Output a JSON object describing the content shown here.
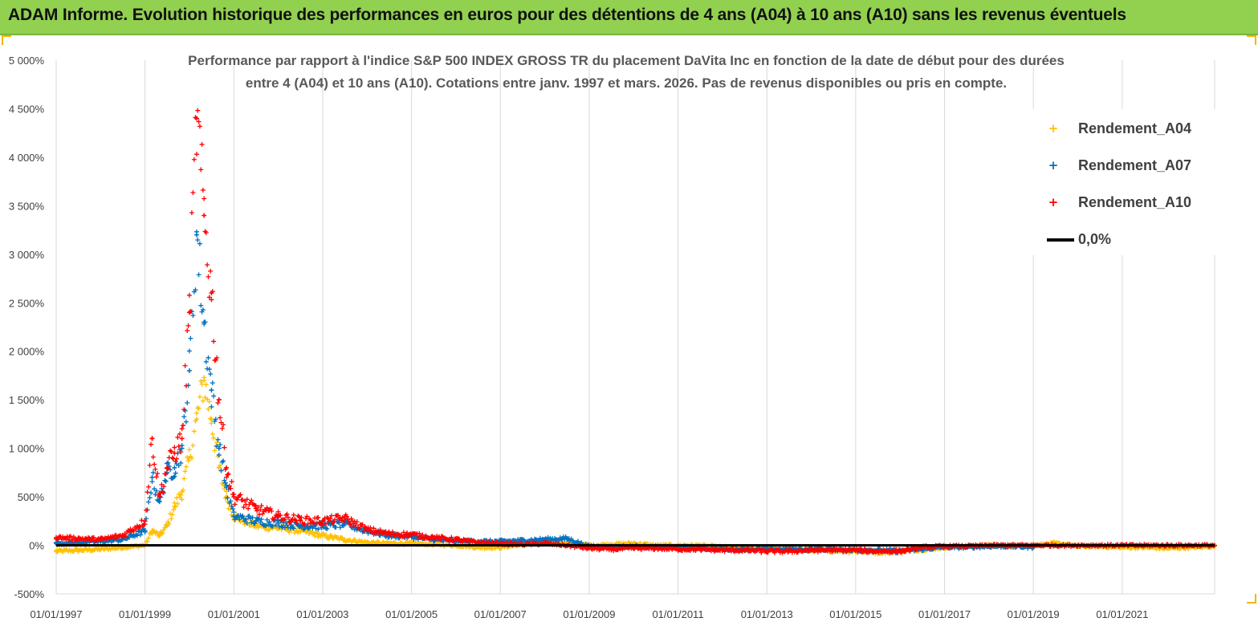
{
  "banner": {
    "title": "ADAM Informe. Evolution historique des performances en euros pour des détentions de 4 ans (A04) à 10 ans (A10) sans les revenus éventuels"
  },
  "chart": {
    "subtitle_line1": "Performance par rapport à l'indice S&P 500 INDEX GROSS TR  du placement DaVita Inc en fonction de la date de début pour des durées",
    "subtitle_line2": "entre 4 (A04) et 10 ans (A10). Cotations entre janv. 1997 et mars. 2026. Pas de revenus disponibles ou pris en compte."
  },
  "legend": {
    "items": [
      {
        "label": "Rendement_A04",
        "marker": "+",
        "color": "#ffc000"
      },
      {
        "label": "Rendement_A07",
        "marker": "+",
        "color": "#0070c0"
      },
      {
        "label": "Rendement_A10",
        "marker": "+",
        "color": "#ff0000"
      },
      {
        "label": "0,0%",
        "marker": "line",
        "color": "#000000"
      }
    ]
  },
  "chart_data": {
    "type": "scatter",
    "title": "Performance par rapport à l'indice S&P 500 INDEX GROSS TR  du placement DaVita Inc en fonction de la date de début pour des durées entre 4 (A04) et 10 ans (A10). Cotations entre janv. 1997 et mars. 2026. Pas de revenus disponibles ou pris en compte.",
    "xlabel": "",
    "ylabel": "",
    "y_unit": "%",
    "ylim": [
      -500,
      5000
    ],
    "xlim": [
      "1997-01-01",
      "2023-01-31"
    ],
    "y_ticks": [
      -500,
      0,
      500,
      1000,
      1500,
      2000,
      2500,
      3000,
      3500,
      4000,
      4500,
      5000
    ],
    "y_tick_labels": [
      "-500%",
      "0%",
      "500%",
      "1 000%",
      "1 500%",
      "2 000%",
      "2 500%",
      "3 000%",
      "3 500%",
      "4 000%",
      "4 500%",
      "5 000%"
    ],
    "x_ticks": [
      "1997-01-01",
      "1999-01-01",
      "2001-01-01",
      "2003-01-01",
      "2005-01-01",
      "2007-01-01",
      "2009-01-01",
      "2011-01-01",
      "2013-01-01",
      "2015-01-01",
      "2017-01-01",
      "2019-01-01",
      "2021-01-01"
    ],
    "x_tick_labels": [
      "01/01/1997",
      "01/01/1999",
      "01/01/2001",
      "01/01/2003",
      "01/01/2005",
      "01/01/2007",
      "01/01/2009",
      "01/01/2011",
      "01/01/2013",
      "01/01/2015",
      "01/01/2017",
      "01/01/2019",
      "01/01/2021"
    ],
    "grid": "vertical",
    "legend_position": "top-right",
    "series": [
      {
        "name": "Rendement_A04",
        "color": "#ffc000",
        "marker": "+",
        "x": [
          "1997-01-01",
          "1997-07-01",
          "1998-01-01",
          "1998-07-01",
          "1999-01-01",
          "1999-03-01",
          "1999-05-01",
          "1999-07-01",
          "1999-09-01",
          "1999-11-01",
          "2000-01-01",
          "2000-03-01",
          "2000-05-01",
          "2000-07-01",
          "2000-09-01",
          "2000-11-01",
          "2001-01-01",
          "2001-07-01",
          "2002-01-01",
          "2002-07-01",
          "2003-01-01",
          "2003-07-01",
          "2004-01-01",
          "2004-07-01",
          "2005-01-01",
          "2005-07-01",
          "2006-01-01",
          "2006-07-01",
          "2007-01-01",
          "2007-07-01",
          "2008-01-01",
          "2008-07-01",
          "2009-01-01",
          "2009-07-01",
          "2010-01-01",
          "2010-07-01",
          "2011-01-01",
          "2011-07-01",
          "2012-01-01",
          "2012-07-01",
          "2013-01-01",
          "2013-07-01",
          "2014-01-01",
          "2014-07-01",
          "2015-01-01",
          "2015-07-01",
          "2016-01-01",
          "2016-07-01",
          "2017-01-01",
          "2017-07-01",
          "2018-01-01",
          "2018-07-01",
          "2019-01-01",
          "2019-07-01",
          "2020-01-01",
          "2020-07-01",
          "2021-01-01",
          "2021-07-01",
          "2022-01-01",
          "2022-07-01",
          "2023-01-31"
        ],
        "y": [
          -60,
          -50,
          -40,
          -20,
          0,
          150,
          100,
          200,
          400,
          550,
          900,
          1300,
          1700,
          1300,
          800,
          500,
          300,
          200,
          180,
          150,
          100,
          60,
          30,
          20,
          20,
          10,
          0,
          -20,
          -20,
          10,
          40,
          20,
          0,
          10,
          20,
          0,
          0,
          0,
          -20,
          -30,
          -40,
          -40,
          -50,
          -50,
          -60,
          -70,
          -60,
          -40,
          -20,
          -10,
          0,
          -10,
          0,
          20,
          -10,
          -10,
          -20,
          -20,
          -30,
          -20,
          -10
        ]
      },
      {
        "name": "Rendement_A07",
        "color": "#0070c0",
        "marker": "+",
        "x": [
          "1997-01-01",
          "1997-07-01",
          "1998-01-01",
          "1998-07-01",
          "1999-01-01",
          "1999-03-01",
          "1999-05-01",
          "1999-07-01",
          "1999-09-01",
          "1999-11-01",
          "2000-01-01",
          "2000-03-01",
          "2000-05-01",
          "2000-07-01",
          "2000-09-01",
          "2000-11-01",
          "2001-01-01",
          "2001-07-01",
          "2002-01-01",
          "2002-07-01",
          "2003-01-01",
          "2003-07-01",
          "2004-01-01",
          "2004-07-01",
          "2005-01-01",
          "2005-07-01",
          "2006-01-01",
          "2006-07-01",
          "2007-01-01",
          "2007-07-01",
          "2008-01-01",
          "2008-07-01",
          "2009-01-01",
          "2009-07-01",
          "2010-01-01",
          "2010-07-01",
          "2011-01-01",
          "2011-07-01",
          "2012-01-01",
          "2012-07-01",
          "2013-01-01",
          "2013-07-01",
          "2014-01-01",
          "2014-07-01",
          "2015-01-01",
          "2015-07-01",
          "2016-01-01",
          "2016-07-01",
          "2017-01-01",
          "2017-07-01",
          "2018-01-01",
          "2018-07-01",
          "2019-01-01"
        ],
        "y": [
          20,
          30,
          40,
          60,
          150,
          700,
          450,
          750,
          800,
          1000,
          1800,
          3200,
          2300,
          1600,
          1000,
          600,
          300,
          250,
          230,
          200,
          200,
          220,
          150,
          100,
          90,
          60,
          40,
          40,
          40,
          50,
          60,
          70,
          -10,
          -20,
          -10,
          -20,
          -20,
          -30,
          -40,
          -40,
          -40,
          -40,
          -40,
          -40,
          -50,
          -50,
          -60,
          -40,
          -20,
          -20,
          -10,
          -10,
          -20
        ]
      },
      {
        "name": "Rendement_A10",
        "color": "#ff0000",
        "marker": "+",
        "x": [
          "1997-01-01",
          "1997-07-01",
          "1998-01-01",
          "1998-07-01",
          "1999-01-01",
          "1999-03-01",
          "1999-05-01",
          "1999-07-01",
          "1999-09-01",
          "1999-11-01",
          "2000-01-01",
          "2000-03-01",
          "2000-05-01",
          "2000-07-01",
          "2000-09-01",
          "2000-11-01",
          "2001-01-01",
          "2001-07-01",
          "2002-01-01",
          "2002-07-01",
          "2003-01-01",
          "2003-07-01",
          "2004-01-01",
          "2004-07-01",
          "2005-01-01",
          "2005-07-01",
          "2006-01-01",
          "2006-07-01",
          "2007-01-01",
          "2007-07-01",
          "2008-01-01",
          "2008-07-01",
          "2009-01-01",
          "2009-07-01",
          "2010-01-01",
          "2010-07-01",
          "2011-01-01",
          "2011-07-01",
          "2012-01-01",
          "2012-07-01",
          "2013-01-01",
          "2013-07-01",
          "2014-01-01",
          "2014-07-01",
          "2015-01-01",
          "2015-07-01",
          "2016-01-01",
          "2016-07-01",
          "2017-01-01",
          "2017-07-01",
          "2018-01-01",
          "2018-07-01",
          "2019-01-01",
          "2019-07-01",
          "2020-01-01",
          "2020-07-01",
          "2021-01-01",
          "2021-07-01",
          "2022-01-01",
          "2022-07-01",
          "2023-01-31"
        ],
        "y": [
          80,
          70,
          60,
          100,
          250,
          1100,
          500,
          800,
          950,
          1100,
          2400,
          4400,
          3400,
          2600,
          1500,
          800,
          500,
          380,
          300,
          260,
          250,
          280,
          160,
          120,
          110,
          80,
          60,
          30,
          20,
          10,
          20,
          0,
          -30,
          -40,
          -30,
          -30,
          -40,
          -40,
          -50,
          -50,
          -60,
          -60,
          -50,
          -50,
          -50,
          -60,
          -60,
          -20,
          -10,
          -10,
          0,
          0,
          0,
          0,
          0,
          0,
          0,
          0,
          0,
          0,
          0
        ]
      },
      {
        "name": "0,0%",
        "color": "#000000",
        "marker": "line",
        "x": [
          "1997-01-01",
          "2023-01-31"
        ],
        "y": [
          0,
          0
        ]
      }
    ]
  }
}
